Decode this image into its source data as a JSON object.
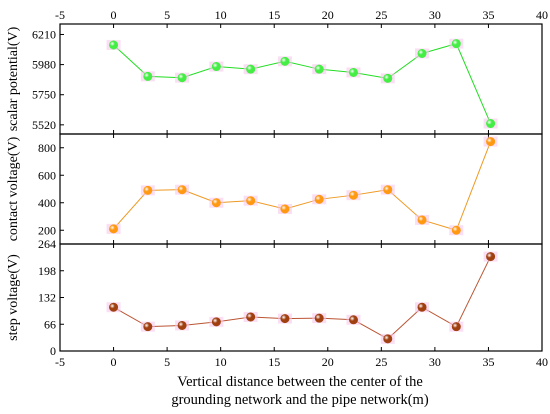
{
  "chart_data": [
    {
      "type": "line",
      "panel": "top",
      "ylabel": "scalar potential(V)",
      "ylim": [
        5450,
        6290
      ],
      "yticks": [
        5520,
        5750,
        5980,
        6210
      ],
      "color": "#22dd22",
      "marker_color": "#44ee44",
      "series": [
        {
          "x": [
            0,
            3.2,
            6.4,
            9.6,
            12.8,
            16,
            19.2,
            22.4,
            25.6,
            28.8,
            32,
            35.2
          ],
          "y": [
            6130,
            5890,
            5880,
            5965,
            5945,
            6005,
            5945,
            5920,
            5875,
            6065,
            6140,
            5530
          ]
        }
      ]
    },
    {
      "type": "line",
      "panel": "middle",
      "ylabel": "contact voltage(V)",
      "ylim": [
        100,
        900
      ],
      "yticks": [
        200,
        400,
        600,
        800
      ],
      "color": "#ee9922",
      "marker_color": "#ff9911",
      "series": [
        {
          "x": [
            0,
            3.2,
            6.4,
            9.6,
            12.8,
            16,
            19.2,
            22.4,
            25.6,
            28.8,
            32,
            35.2
          ],
          "y": [
            210,
            490,
            495,
            400,
            415,
            355,
            425,
            455,
            495,
            275,
            200,
            845
          ]
        }
      ]
    },
    {
      "type": "line",
      "panel": "bottom",
      "ylabel": "step voltage(V)",
      "ylim": [
        0,
        264
      ],
      "yticks": [
        0,
        66,
        132,
        198,
        264
      ],
      "color": "#bb5533",
      "marker_color": "#a04010",
      "series": [
        {
          "x": [
            0,
            3.2,
            6.4,
            9.6,
            12.8,
            16,
            19.2,
            22.4,
            25.6,
            28.8,
            32,
            35.2
          ],
          "y": [
            108,
            60,
            63,
            72,
            84,
            80,
            81,
            77,
            30,
            108,
            60,
            233
          ]
        }
      ]
    }
  ],
  "xaxis": {
    "label_line1": "Vertical distance between the center of the",
    "label_line2": "grounding network and the pipe network(m)",
    "xlim": [
      -5,
      40
    ],
    "ticks": [
      -5,
      0,
      5,
      10,
      15,
      20,
      25,
      30,
      35,
      40
    ]
  }
}
